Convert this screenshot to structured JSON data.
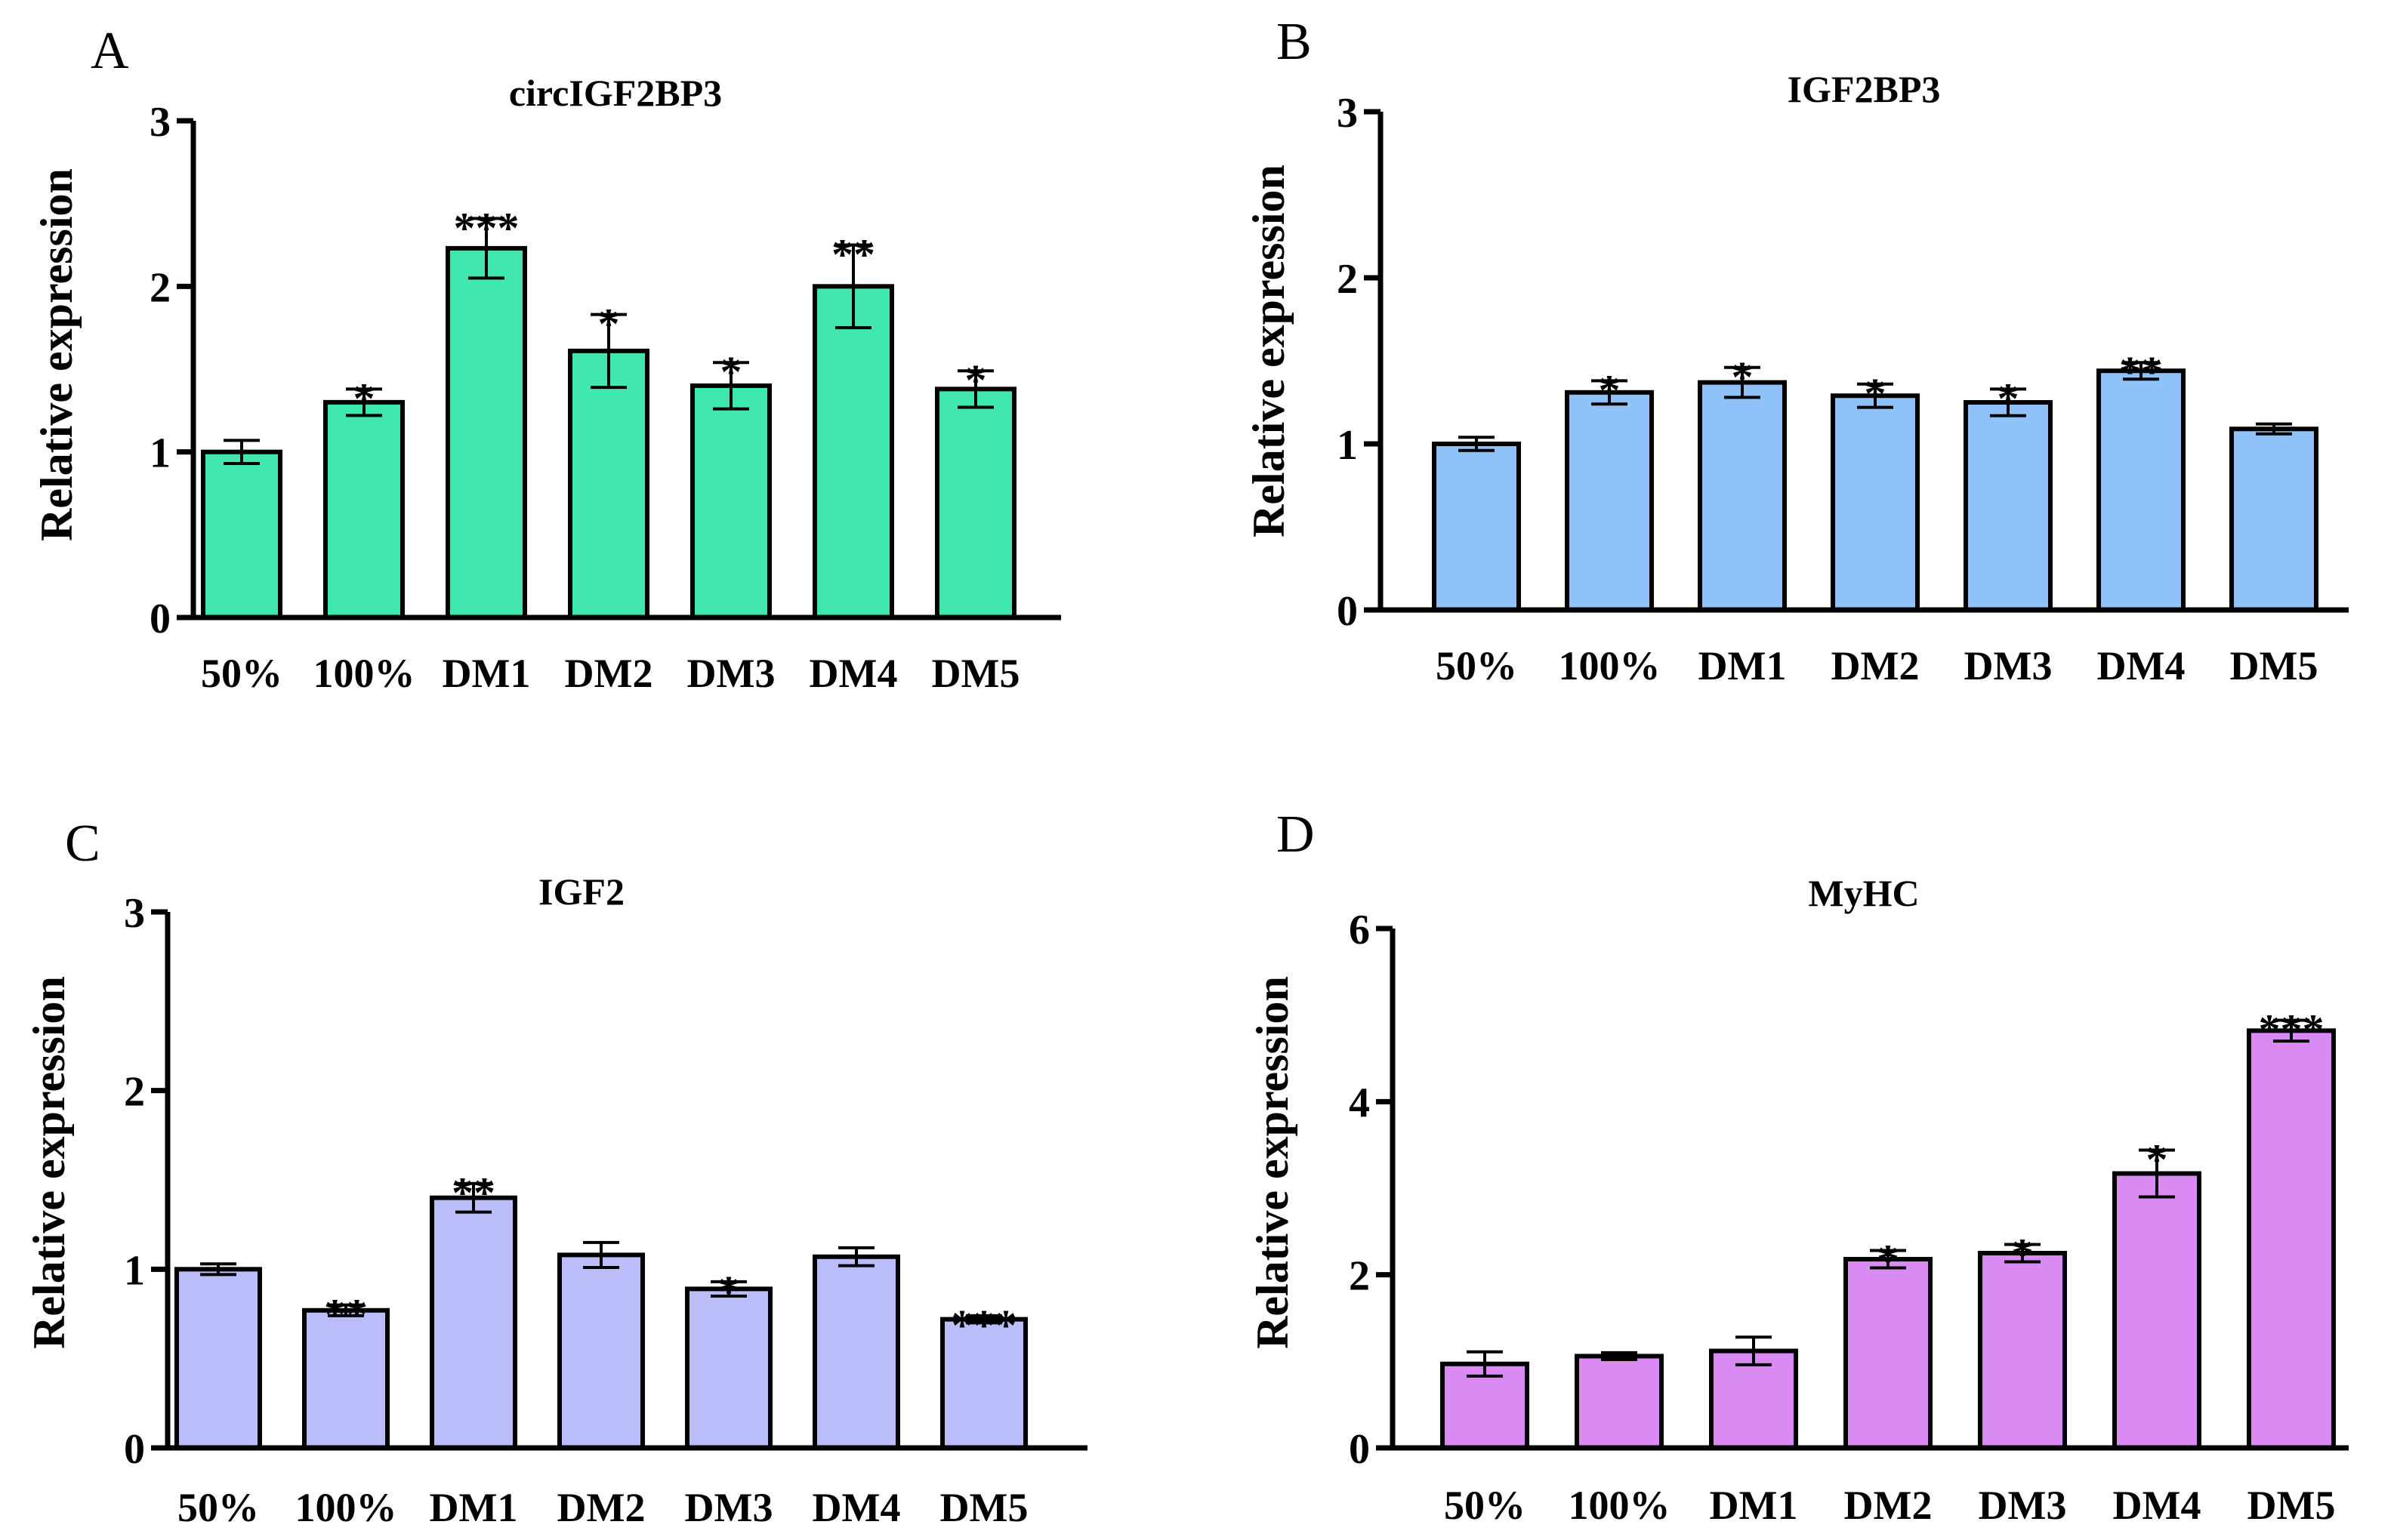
{
  "chart_data": [
    {
      "type": "bar",
      "panel": "A",
      "title": "circIGF2BP3",
      "xlabel": "",
      "ylabel": "Relative expression",
      "categories": [
        "50%",
        "100%",
        "DM1",
        "DM2",
        "DM3",
        "DM4",
        "DM5"
      ],
      "values": [
        1.0,
        1.3,
        2.23,
        1.61,
        1.4,
        2.0,
        1.38
      ],
      "errors": [
        0.07,
        0.08,
        0.18,
        0.22,
        0.14,
        0.25,
        0.11
      ],
      "significance": [
        "",
        "*",
        "***",
        "*",
        "*",
        "**",
        "*"
      ],
      "ylim": [
        0,
        3
      ],
      "yticks": [
        0,
        1,
        2,
        3
      ],
      "color": "#40E8AE"
    },
    {
      "type": "bar",
      "panel": "B",
      "title": "IGF2BP3",
      "xlabel": "",
      "ylabel": "Relative expression",
      "categories": [
        "50%",
        "100%",
        "DM1",
        "DM2",
        "DM3",
        "DM4",
        "DM5"
      ],
      "values": [
        1.0,
        1.31,
        1.37,
        1.29,
        1.25,
        1.44,
        1.09
      ],
      "errors": [
        0.04,
        0.07,
        0.09,
        0.07,
        0.08,
        0.05,
        0.03
      ],
      "significance": [
        "",
        "*",
        "*",
        "*",
        "*",
        "**",
        ""
      ],
      "ylim": [
        0,
        3
      ],
      "yticks": [
        0,
        1,
        2,
        3
      ],
      "color": "#8FC2F9"
    },
    {
      "type": "bar",
      "panel": "C",
      "title": "IGF2",
      "xlabel": "",
      "ylabel": "Relative expression",
      "categories": [
        "50%",
        "100%",
        "DM1",
        "DM2",
        "DM3",
        "DM4",
        "DM5"
      ],
      "values": [
        1.0,
        0.77,
        1.4,
        1.08,
        0.89,
        1.07,
        0.72
      ],
      "errors": [
        0.03,
        0.03,
        0.08,
        0.07,
        0.04,
        0.05,
        0.02
      ],
      "significance": [
        "",
        "**",
        "**",
        "",
        "*",
        "",
        "***"
      ],
      "ylim": [
        0,
        3
      ],
      "yticks": [
        0,
        1,
        2,
        3
      ],
      "color": "#BBBDFB"
    },
    {
      "type": "bar",
      "panel": "D",
      "title": "MyHC",
      "xlabel": "",
      "ylabel": "Relative expression",
      "categories": [
        "50%",
        "100%",
        "DM1",
        "DM2",
        "DM3",
        "DM4",
        "DM5"
      ],
      "values": [
        0.97,
        1.06,
        1.12,
        2.18,
        2.25,
        3.17,
        4.82
      ],
      "errors": [
        0.14,
        0.04,
        0.16,
        0.1,
        0.1,
        0.27,
        0.12
      ],
      "significance": [
        "",
        "",
        "",
        "*",
        "*",
        "*",
        "***"
      ],
      "ylim": [
        0,
        6
      ],
      "yticks": [
        0,
        2,
        4,
        6
      ],
      "color": "#DA8BF3"
    }
  ]
}
